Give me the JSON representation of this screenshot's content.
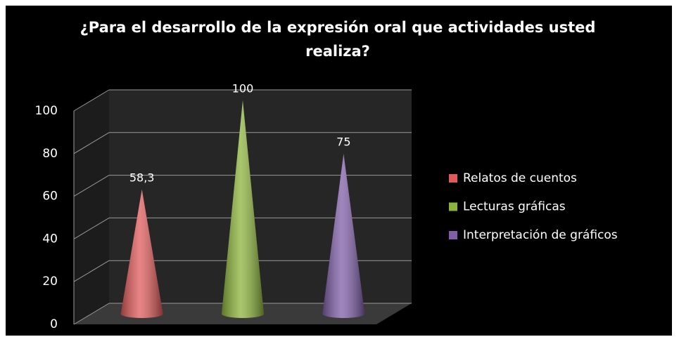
{
  "chart_data": {
    "type": "cone",
    "title": "¿Para el desarrollo de la expresión oral que actividades usted realiza?",
    "categories": [
      null
    ],
    "series": [
      {
        "name": "Relatos de cuentos",
        "color": "#e05a5a",
        "values": [
          58.3
        ],
        "value_labels": [
          "58,3"
        ]
      },
      {
        "name": "Lecturas gráficas",
        "color": "#8cb43c",
        "values": [
          100
        ]
      },
      {
        "name": "Interpretación de gráficos",
        "color": "#7f5fa8",
        "values": [
          75
        ]
      }
    ],
    "ylim": [
      0,
      100
    ],
    "yticks": [
      0,
      20,
      40,
      60,
      80,
      100
    ],
    "grid": true,
    "legend": "right"
  }
}
